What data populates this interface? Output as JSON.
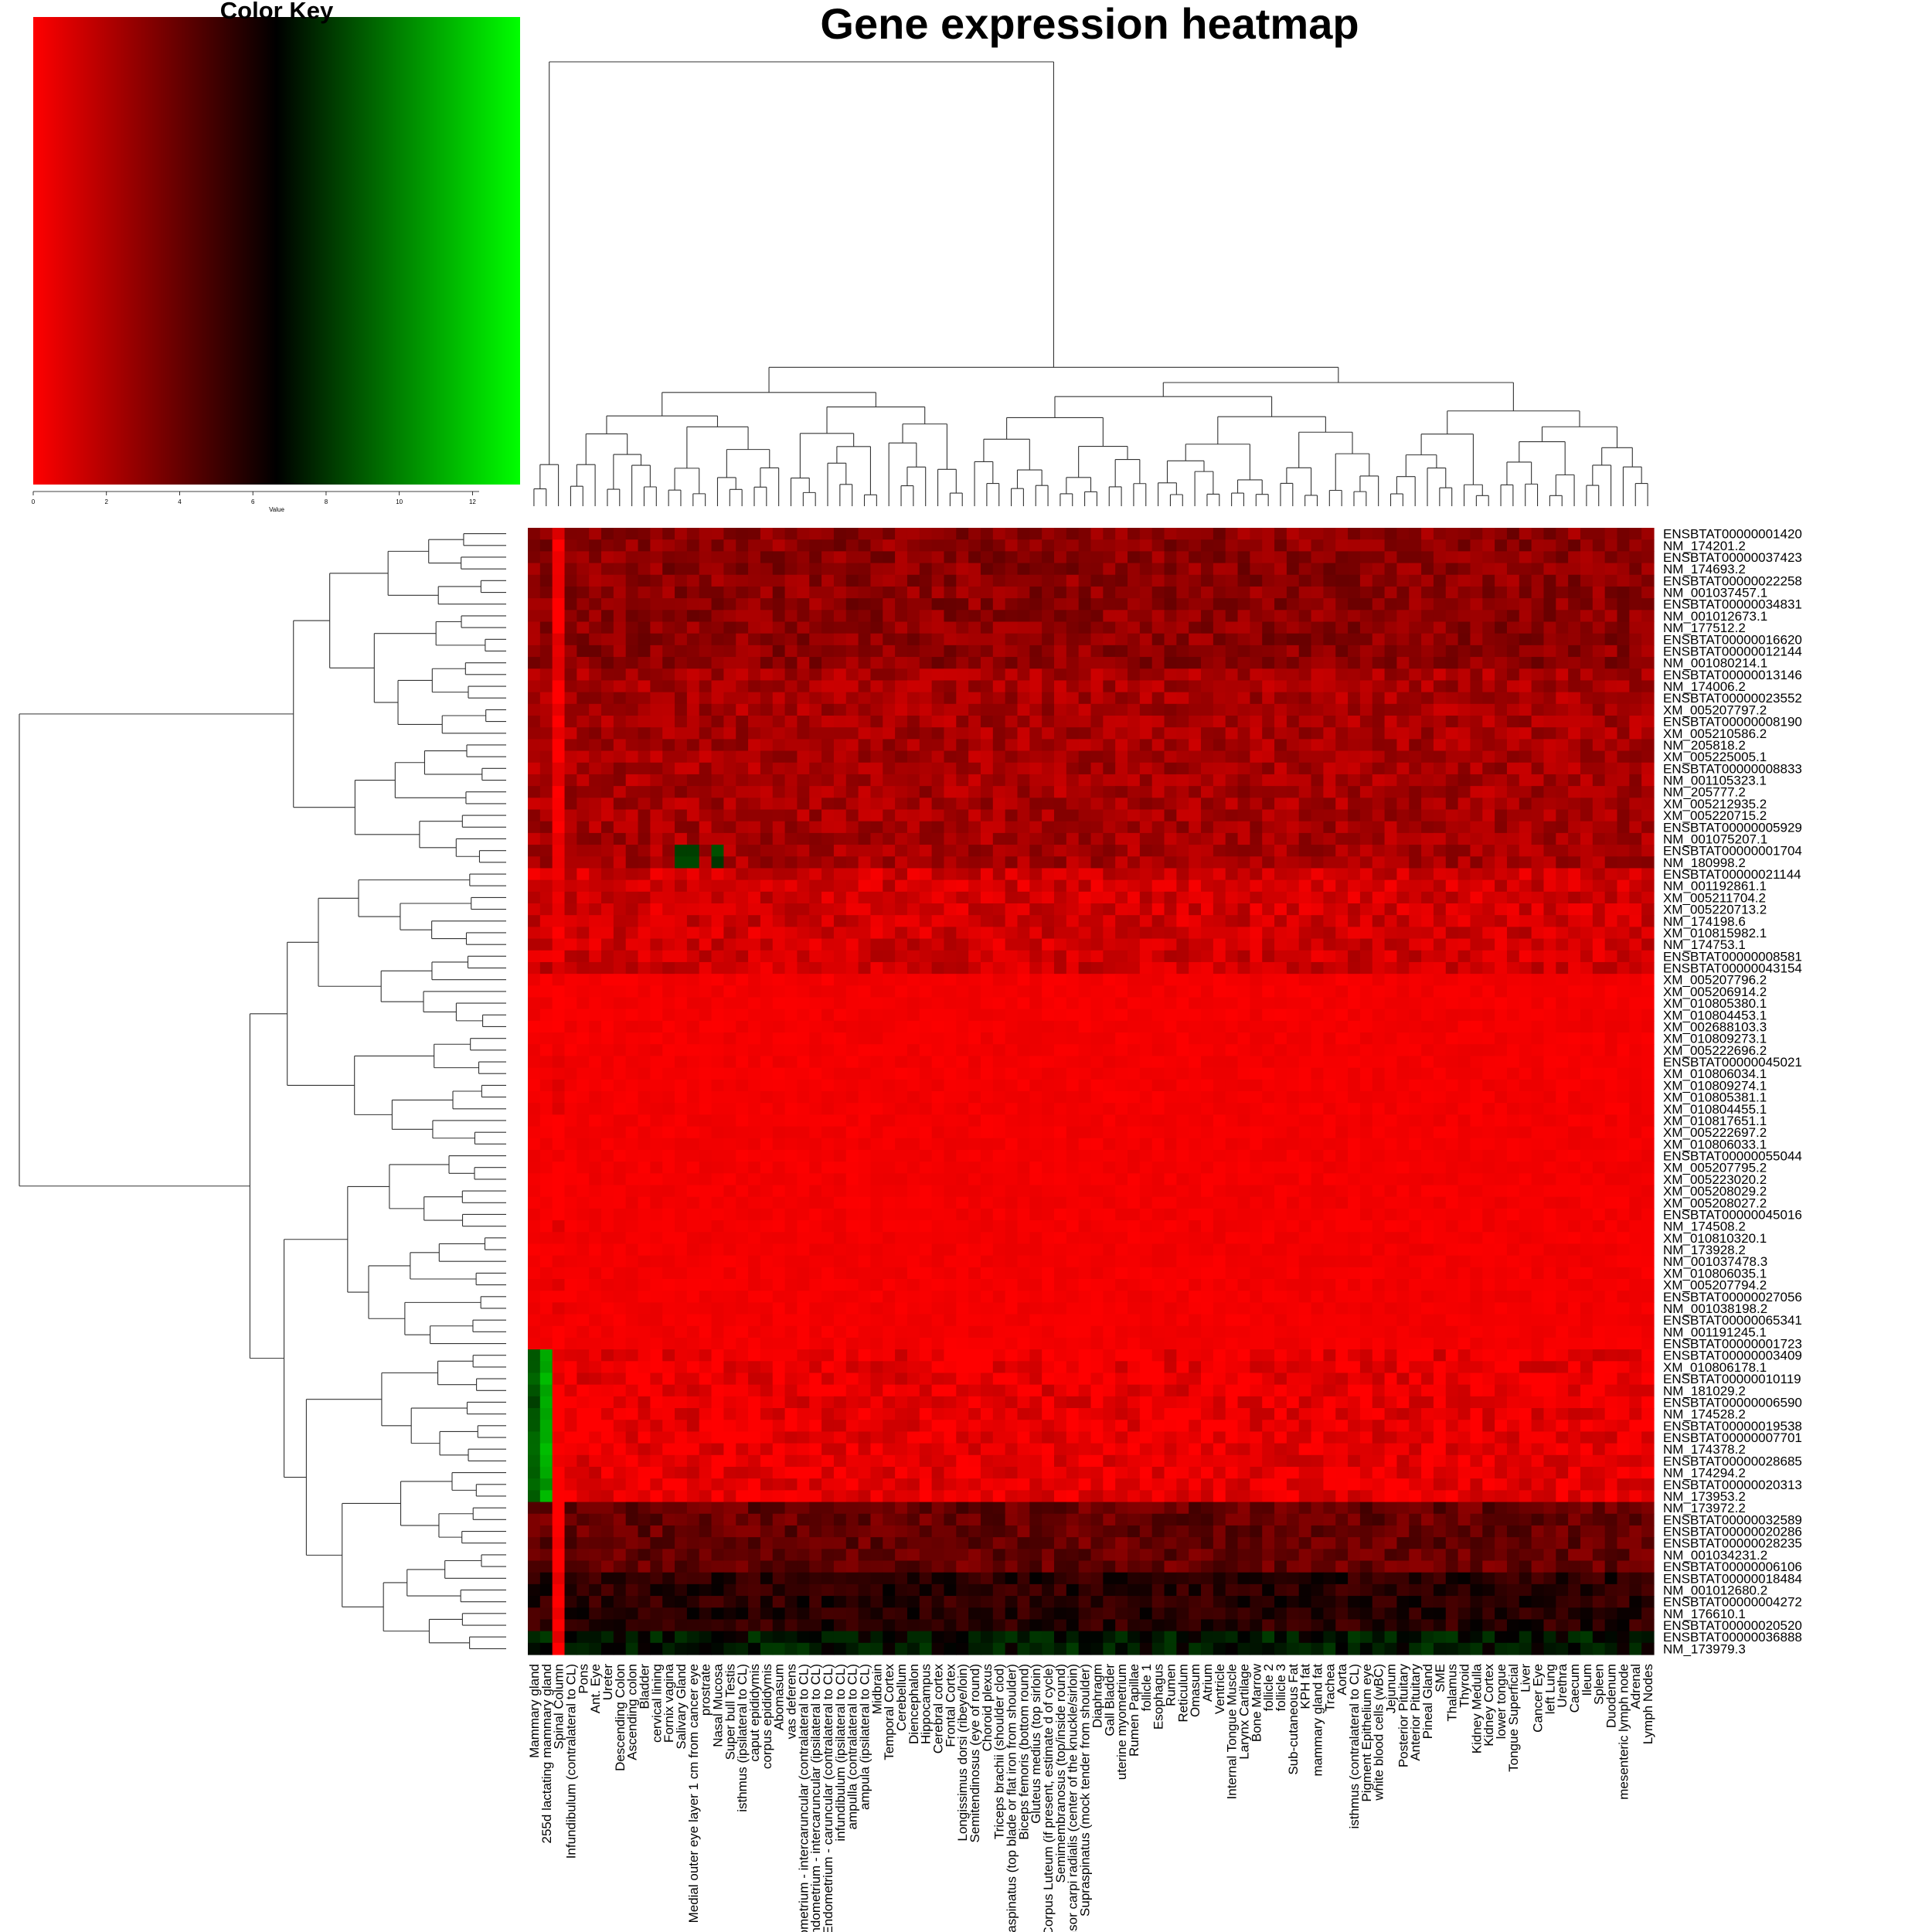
{
  "chart_data": {
    "type": "heatmap",
    "title": "Gene expression heatmap",
    "color_key": {
      "title": "Color Key",
      "xlabel": "Value",
      "ticks": [
        0,
        2,
        4,
        6,
        8,
        10,
        12
      ],
      "range": [
        0,
        13.3
      ],
      "colors": [
        "#ff0000",
        "#000000",
        "#00ff00"
      ]
    },
    "columns": [
      "Mammary gland",
      "255d lactating mammary gland",
      "Spinal Column",
      "Infundibulum (contralateral to CL)",
      "Pons",
      "Ant. Eye",
      "Ureter",
      "Descending Colon",
      "Ascending colon",
      "Bladder",
      "cervical lining",
      "Fornix vagina",
      "Salivary Gland",
      "Medial outer eye layer 1 cm from cancer eye",
      "prostrate",
      "Nasal Mucosa",
      "Super bull Testis",
      "isthmus (ipsilateral to CL)",
      "caput epididymis",
      "corpus epididymis",
      "Abomasum",
      "vas deferens",
      "Endometrium - intercaruncular (contralateral to CL)",
      "Endometrium - intercaruncular (ipsilateral to CL)",
      "Endometrium - caruncular (contralateral to CL)",
      "infundibulum (ipsilateral to CL)",
      "ampulla (contralateral to CL)",
      "ampula (ipsilateral to CL)",
      "Midbrain",
      "Temporal Cortex",
      "Cerebellum",
      "Diencephalon",
      "Hippocampus",
      "Cerebral cortex",
      "Frontal Cortex",
      "Longissimus dorsi (ribeye/loin)",
      "Semitendinosus (eye of round)",
      "Choroid plexus",
      "Triceps brachii (shoulder clod)",
      "Infraspinatus (top blade or flat iron from shoulder)",
      "Biceps femoris (bottom round)",
      "Gluteus medius (top sirloin)",
      "Corpus Luteum (if present, estimate d of cycle)",
      "Semimembranosus (top/inside round)",
      "Extensor carpi radialis (center of the knuckle/sirloin)",
      "Supraspinatus (mock tender from shoulder)",
      "Diaphragm",
      "Gall Bladder",
      "uterine myometrium",
      "Rumen Papillae",
      "follicle 1",
      "Esophagus",
      "Rumen",
      "Reticulum",
      "Omasum",
      "Atrium",
      "Ventricle",
      "Internal Tongue Muscle",
      "Larynx Cartilage",
      "Bone Marrow",
      "follicle 2",
      "follicle 3",
      "Sub-cutaneous Fat",
      "KPH fat",
      "mammary gland fat",
      "Trachea",
      "Aorta",
      "isthmus (contralateral to CL)",
      "Pigment Epithelium eye",
      "white blood cells (wBC)",
      "Jejunum",
      "Posterior Pituitary",
      "Anterior Pituitary",
      "Pineal Gland",
      "SME",
      "Thalamus",
      "Thyroid",
      "Kidney Medulla",
      "Kidney Cortex",
      "lower tongue",
      "Tongue Superficial",
      "Liver",
      "Cancer Eye",
      "left Lung",
      "Urethra",
      "Caecum",
      "Ileum",
      "Spleen",
      "Duodenum",
      "mesenteric lymph node",
      "Adrenal",
      "Lymph Nodes"
    ],
    "rows": [
      "ENSBTAT00000001420",
      "NM_174201.2",
      "ENSBTAT00000037423",
      "NM_174693.2",
      "ENSBTAT00000022258",
      "NM_001037457.1",
      "ENSBTAT00000034831",
      "NM_001012673.1",
      "NM_177512.2",
      "ENSBTAT00000016620",
      "ENSBTAT00000012144",
      "NM_001080214.1",
      "ENSBTAT00000013146",
      "NM_174006.2",
      "ENSBTAT00000023552",
      "XM_005207797.2",
      "ENSBTAT00000008190",
      "XM_005210586.2",
      "NM_205818.2",
      "XM_005225005.1",
      "ENSBTAT00000008833",
      "NM_001105323.1",
      "NM_205777.2",
      "XM_005212935.2",
      "XM_005220715.2",
      "ENSBTAT00000005929",
      "NM_001075207.1",
      "ENSBTAT00000001704",
      "NM_180998.2",
      "ENSBTAT00000021144",
      "NM_001192861.1",
      "XM_005211704.2",
      "XM_005220713.2",
      "NM_174198.6",
      "XM_010815982.1",
      "NM_174753.1",
      "ENSBTAT00000008581",
      "ENSBTAT00000043154",
      "XM_005207796.2",
      "XM_005206914.2",
      "XM_010805380.1",
      "XM_010804453.1",
      "XM_002688103.3",
      "XM_010809273.1",
      "XM_005222696.2",
      "ENSBTAT00000045021",
      "XM_010806034.1",
      "XM_010809274.1",
      "XM_010805381.1",
      "XM_010804455.1",
      "XM_010817651.1",
      "XM_005222697.2",
      "XM_010806033.1",
      "ENSBTAT00000055044",
      "XM_005207795.2",
      "XM_005223020.2",
      "XM_005208029.2",
      "XM_005208027.2",
      "ENSBTAT00000045016",
      "NM_174508.2",
      "XM_010810320.1",
      "NM_173928.2",
      "NM_001037478.3",
      "XM_010806035.1",
      "XM_005207794.2",
      "ENSBTAT00000027056",
      "NM_001038198.2",
      "ENSBTAT00000065341",
      "NM_001191245.1",
      "ENSBTAT00000001723",
      "ENSBTAT00000003409",
      "XM_010806178.1",
      "ENSBTAT00000010119",
      "NM_181029.2",
      "ENSBTAT00000006590",
      "NM_174528.2",
      "ENSBTAT00000019538",
      "ENSBTAT00000007701",
      "NM_174378.2",
      "ENSBTAT00000028685",
      "NM_174294.2",
      "ENSBTAT00000020313",
      "NM_173953.2",
      "NM_173972.2",
      "ENSBTAT00000032589",
      "ENSBTAT00000020286",
      "ENSBTAT00000028235",
      "NM_001034231.2",
      "ENSBTAT00000006106",
      "ENSBTAT00000018484",
      "NM_001012680.2",
      "ENSBTAT00000004272",
      "NM_176610.1",
      "ENSBTAT00000020520",
      "ENSBTAT00000036888",
      "NM_173979.3"
    ],
    "row_bands": [
      {
        "rows": [
          0,
          11
        ],
        "value": 3.0
      },
      {
        "rows": [
          12,
          28
        ],
        "value": 2.3
      },
      {
        "rows": [
          29,
          37
        ],
        "value": 1.2
      },
      {
        "rows": [
          38,
          69
        ],
        "value": 0.3
      },
      {
        "rows": [
          70,
          82
        ],
        "value": 0.6
      },
      {
        "rows": [
          83,
          88
        ],
        "value": 4.0
      },
      {
        "rows": [
          89,
          93
        ],
        "value": 5.6
      },
      {
        "rows": [
          94,
          95
        ],
        "value": 7.2
      }
    ],
    "column_modifiers": [
      {
        "column": "Mammary gland",
        "rows": [
          70,
          82
        ],
        "value": 9.0
      },
      {
        "column": "255d lactating mammary gland",
        "rows": [
          70,
          82
        ],
        "value": 11.0
      },
      {
        "column": "Spinal Column",
        "rows": [
          0,
          95
        ],
        "value": 0.2
      },
      {
        "column": "Salivary Gland",
        "rows": [
          27,
          28
        ],
        "value": 8.5
      },
      {
        "column": "Medial outer eye layer 1 cm from cancer eye",
        "rows": [
          27,
          28
        ],
        "value": 8.5
      },
      {
        "column": "Nasal Mucosa",
        "rows": [
          27,
          28
        ],
        "value": 8.5
      }
    ]
  }
}
